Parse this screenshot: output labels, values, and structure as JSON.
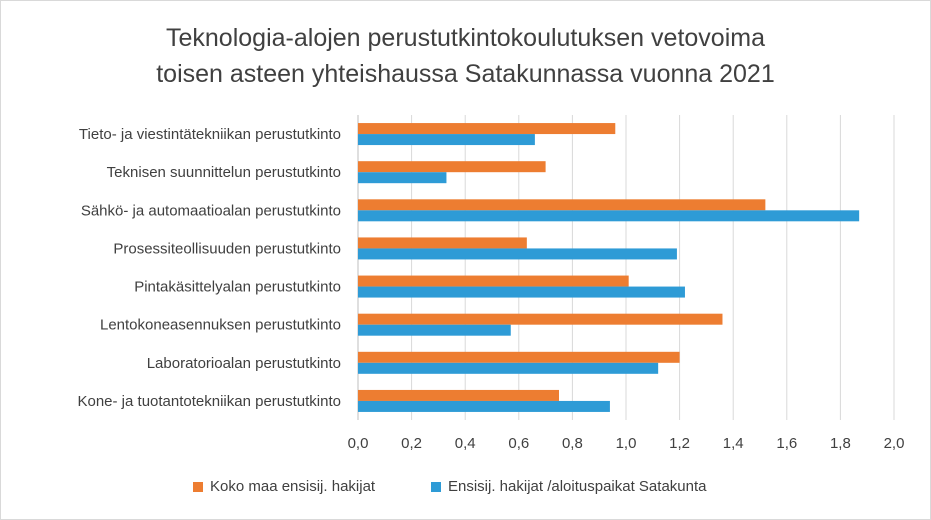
{
  "chart_data": {
    "type": "bar",
    "orientation": "horizontal",
    "title_lines": [
      "Teknologia-alojen perustutkintokoulutuksen vetovoima",
      "toisen asteen yhteishaussa Satakunnassa vuonna 2021"
    ],
    "categories": [
      "Tieto- ja viestintätekniikan perustutkinto",
      "Teknisen suunnittelun perustutkinto",
      "Sähkö- ja automaatioalan perustutkinto",
      "Prosessiteollisuuden perustutkinto",
      "Pintakäsittelyalan perustutkinto",
      "Lentokoneasennuksen perustutkinto",
      "Laboratorioalan perustutkinto",
      "Kone- ja tuotantotekniikan perustutkinto"
    ],
    "series": [
      {
        "name": "Koko maa ensisij. hakijat",
        "color": "#ED7D31",
        "values": [
          0.96,
          0.7,
          1.52,
          0.63,
          1.01,
          1.36,
          1.2,
          0.75
        ]
      },
      {
        "name": "Ensisij. hakijat /aloituspaikat Satakunta",
        "color": "#2E9BD6",
        "values": [
          0.66,
          0.33,
          1.87,
          1.19,
          1.22,
          0.57,
          1.12,
          0.94
        ]
      }
    ],
    "xlim": [
      0,
      2.0
    ],
    "xticks": [
      "0,0",
      "0,2",
      "0,4",
      "0,6",
      "0,8",
      "1,0",
      "1,2",
      "1,4",
      "1,6",
      "1,8",
      "2,0"
    ],
    "grid": true,
    "legend_position": "bottom"
  }
}
